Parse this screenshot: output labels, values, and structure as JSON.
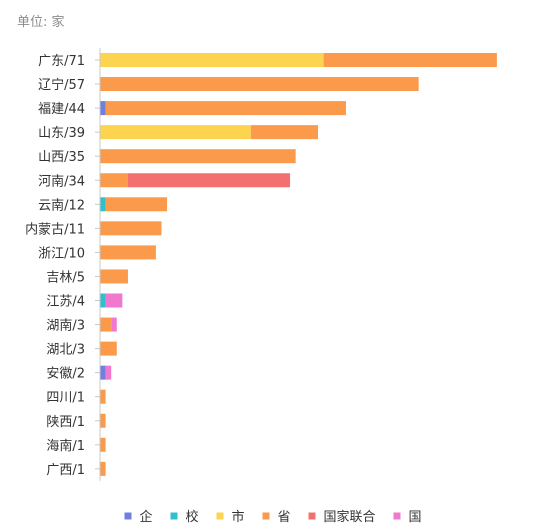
{
  "unit_label": "单位: 家",
  "chart_data": {
    "type": "bar",
    "orientation": "horizontal",
    "stacked": true,
    "categories": [
      "广东/71",
      "辽宁/57",
      "福建/44",
      "山东/39",
      "山西/35",
      "河南/34",
      "云南/12",
      "内蒙古/11",
      "浙江/10",
      "吉林/5",
      "江苏/4",
      "湖南/3",
      "湖北/3",
      "安徽/2",
      "四川/1",
      "陕西/1",
      "海南/1",
      "广西/1"
    ],
    "series": [
      {
        "name": "企",
        "color": "#6f80e0",
        "values": [
          0,
          0,
          1,
          0,
          0,
          0,
          0,
          0,
          0,
          0,
          0,
          0,
          0,
          1,
          0,
          0,
          0,
          0
        ]
      },
      {
        "name": "校",
        "color": "#2fbfcf",
        "values": [
          0,
          0,
          0,
          0,
          0,
          0,
          1,
          0,
          0,
          0,
          1,
          0,
          0,
          0,
          0,
          0,
          0,
          0
        ]
      },
      {
        "name": "市",
        "color": "#fcd450",
        "values": [
          40,
          0,
          0,
          27,
          0,
          0,
          0,
          0,
          0,
          0,
          0,
          0,
          0,
          0,
          0,
          0,
          0,
          0
        ]
      },
      {
        "name": "省",
        "color": "#fa9a4a",
        "values": [
          31,
          57,
          43,
          12,
          35,
          5,
          11,
          11,
          10,
          5,
          0,
          2,
          3,
          0,
          1,
          1,
          1,
          1
        ]
      },
      {
        "name": "国家联合",
        "color": "#f2706f",
        "values": [
          0,
          0,
          0,
          0,
          0,
          29,
          0,
          0,
          0,
          0,
          0,
          0,
          0,
          0,
          0,
          0,
          0,
          0
        ]
      },
      {
        "name": "国",
        "color": "#f178cf",
        "values": [
          0,
          0,
          0,
          0,
          0,
          0,
          0,
          0,
          0,
          0,
          3,
          1,
          0,
          1,
          0,
          0,
          0,
          0
        ]
      }
    ],
    "xlim": [
      0,
      80
    ],
    "grid": false,
    "legend_position": "bottom"
  }
}
